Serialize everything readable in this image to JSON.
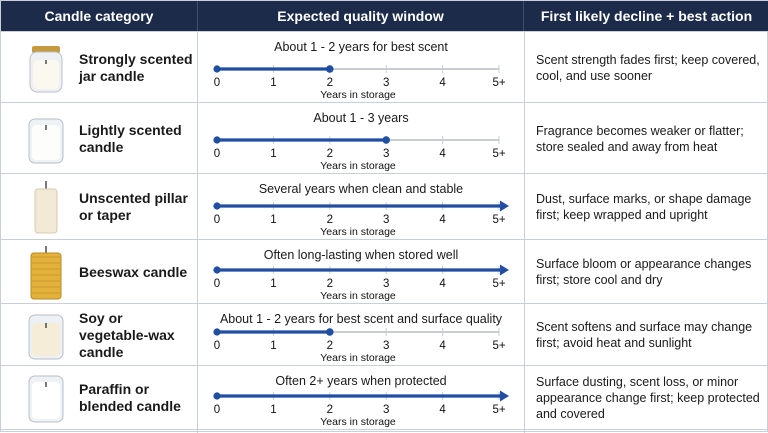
{
  "header": {
    "col1": "Candle category",
    "col2": "Expected quality window",
    "col3": "First likely decline + best action"
  },
  "axis": {
    "ticks": [
      "0",
      "1",
      "2",
      "3",
      "4",
      "5+"
    ],
    "label": "Years in storage"
  },
  "colors": {
    "header_bg": "#1c2b4a",
    "line_blue": "#1f4ea3",
    "track_gray": "#c9ccd2"
  },
  "rows": [
    {
      "category": "Strongly scented jar candle",
      "icon": "scented-jar-candle-icon",
      "window": "About 1 - 2 years for best scent",
      "line_end_years": 2,
      "open_ended": false,
      "action": "Scent strength fades first; keep covered, cool, and use sooner"
    },
    {
      "category": "Lightly scented candle",
      "icon": "glass-candle-icon",
      "window": "About 1 - 3 years",
      "line_end_years": 3,
      "open_ended": false,
      "action": "Fragrance becomes weaker or flatter; store sealed and away from heat"
    },
    {
      "category": "Unscented pillar or taper",
      "icon": "pillar-candle-icon",
      "window": "Several years when clean and stable",
      "line_end_years": 5,
      "open_ended": true,
      "action": "Dust, surface marks, or shape damage first; keep wrapped and upright"
    },
    {
      "category": "Beeswax candle",
      "icon": "beeswax-candle-icon",
      "window": "Often long-lasting when stored well",
      "line_end_years": 5,
      "open_ended": true,
      "action": "Surface bloom or appearance changes first; store cool and dry"
    },
    {
      "category": "Soy or vegetable-wax candle",
      "icon": "soy-candle-icon",
      "window": "About 1 - 2 years for best scent and surface quality",
      "line_end_years": 2,
      "open_ended": false,
      "action": "Scent softens and surface may change first; avoid heat and sunlight"
    },
    {
      "category": "Paraffin or blended candle",
      "icon": "paraffin-candle-icon",
      "window": "Often 2+ years when protected",
      "line_end_years": 5,
      "open_ended": true,
      "action": "Surface dusting, scent loss, or minor appearance change first; keep protected and covered"
    }
  ]
}
